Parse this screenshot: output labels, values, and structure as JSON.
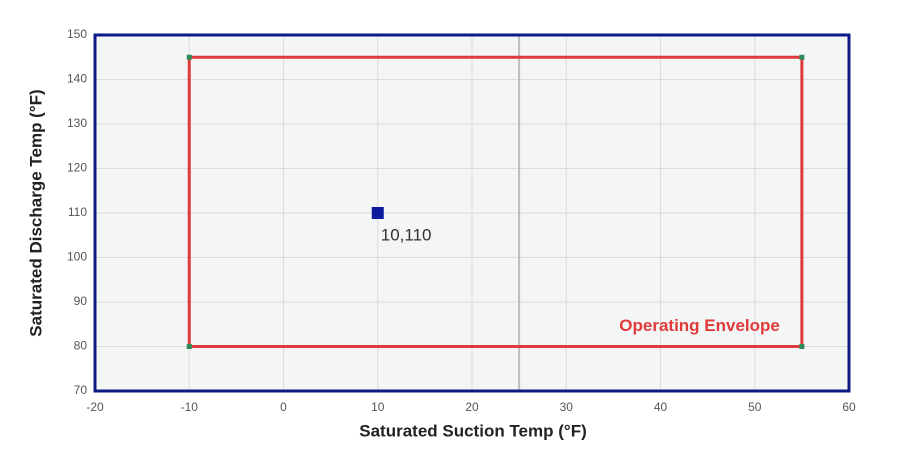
{
  "chart_data": {
    "type": "scatter",
    "xlabel": "Saturated Suction Temp (°F)",
    "ylabel": "Saturated Discharge Temp (°F)",
    "xlim": [
      -20,
      60
    ],
    "xticks": [
      -20,
      -10,
      0,
      10,
      20,
      30,
      40,
      50,
      60
    ],
    "ylim": [
      70,
      150
    ],
    "yticks": [
      70,
      80,
      90,
      100,
      110,
      120,
      130,
      140,
      150
    ],
    "grid": true,
    "reference_line_x": 25,
    "envelope": {
      "name": "Operating Envelope",
      "color": "#e03b3b",
      "corner_color": "#2e8b57",
      "x": [
        -10,
        55,
        55,
        -10
      ],
      "y": [
        80,
        80,
        145,
        145
      ]
    },
    "points": {
      "color": "#0d1aa0",
      "x": [
        10
      ],
      "values": [
        110
      ],
      "value_labels": [
        "10,110"
      ]
    }
  }
}
